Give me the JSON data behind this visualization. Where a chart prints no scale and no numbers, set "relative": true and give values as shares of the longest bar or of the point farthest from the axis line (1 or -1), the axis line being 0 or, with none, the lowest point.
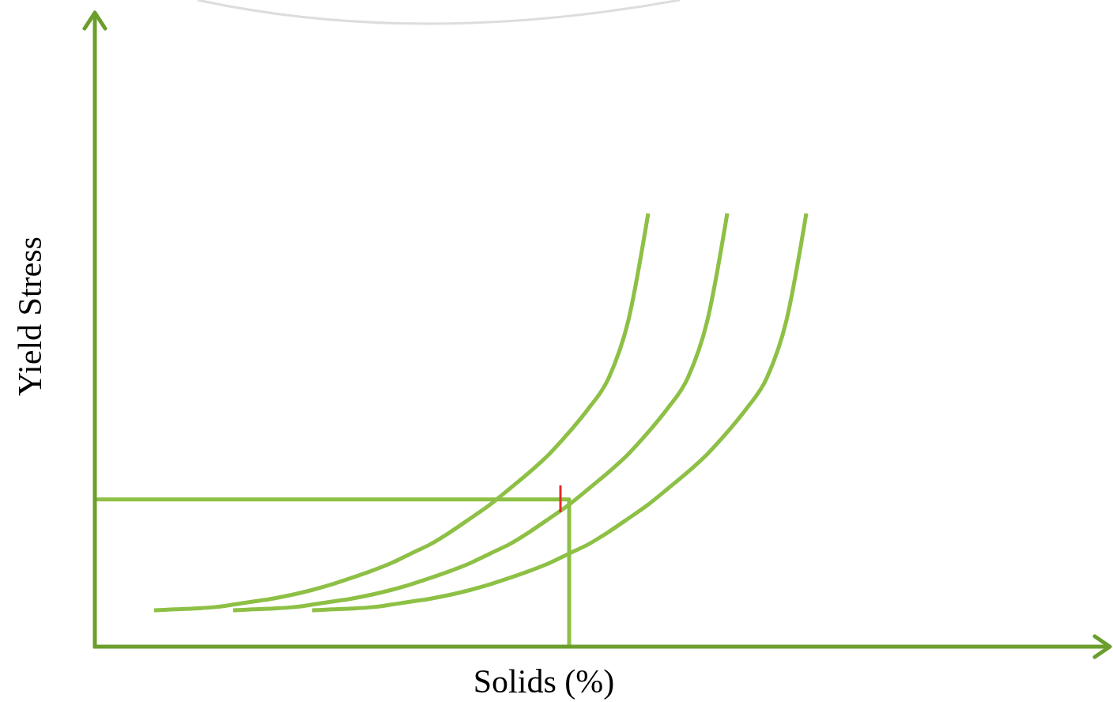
{
  "chart_data": {
    "type": "line",
    "relative": true,
    "xlabel": "Solids (%)",
    "ylabel": "Yield Stress",
    "categories": [
      null,
      null,
      null,
      null,
      null,
      null,
      null,
      null,
      null,
      null,
      null,
      null,
      null,
      null,
      null,
      null,
      null,
      null,
      null,
      null,
      null,
      null,
      null,
      null,
      null,
      null,
      null,
      null,
      null,
      null,
      null,
      null,
      null,
      null,
      null,
      null,
      null
    ],
    "series": [
      {
        "color": "#8dc045",
        "values": [
          null,
          null,
          null,
          0.084,
          0.086,
          0.088,
          0.091,
          0.097,
          0.104,
          0.111,
          0.12,
          0.131,
          0.144,
          0.159,
          0.175,
          0.193,
          0.215,
          0.237,
          0.265,
          0.296,
          0.328,
          0.365,
          0.403,
          0.445,
          0.495,
          0.551,
          0.62,
          0.754,
          1,
          null,
          null,
          null,
          null,
          null,
          null,
          null,
          null
        ]
      },
      {
        "color": "#8dc045",
        "values": [
          null,
          null,
          null,
          null,
          null,
          null,
          null,
          0.084,
          0.086,
          0.088,
          0.091,
          0.097,
          0.104,
          0.111,
          0.12,
          0.131,
          0.144,
          0.159,
          0.175,
          0.193,
          0.215,
          0.237,
          0.265,
          0.296,
          0.328,
          0.365,
          0.403,
          0.445,
          0.495,
          0.551,
          0.62,
          0.754,
          1,
          null,
          null,
          null,
          null
        ]
      },
      {
        "color": "#8dc045",
        "values": [
          null,
          null,
          null,
          null,
          null,
          null,
          null,
          null,
          null,
          null,
          null,
          0.084,
          0.086,
          0.088,
          0.091,
          0.097,
          0.104,
          0.111,
          0.12,
          0.131,
          0.144,
          0.159,
          0.175,
          0.193,
          0.215,
          0.237,
          0.265,
          0.296,
          0.328,
          0.365,
          0.403,
          0.445,
          0.495,
          0.551,
          0.62,
          0.754,
          1
        ]
      },
      {
        "type": "step",
        "color": "#8dc045",
        "values": [
          0.34,
          0.34,
          0.34,
          0.34,
          0.34,
          0.34,
          0.34,
          0.34,
          0.34,
          0.34,
          0.34,
          0.34,
          0.34,
          0.34,
          0.34,
          0.34,
          0.34,
          0.34,
          0.34,
          0.34,
          0.34,
          0.34,
          0.34,
          0.34,
          0,
          null,
          null,
          null,
          null,
          null,
          null,
          null,
          null,
          null,
          null,
          null,
          null
        ]
      }
    ]
  }
}
